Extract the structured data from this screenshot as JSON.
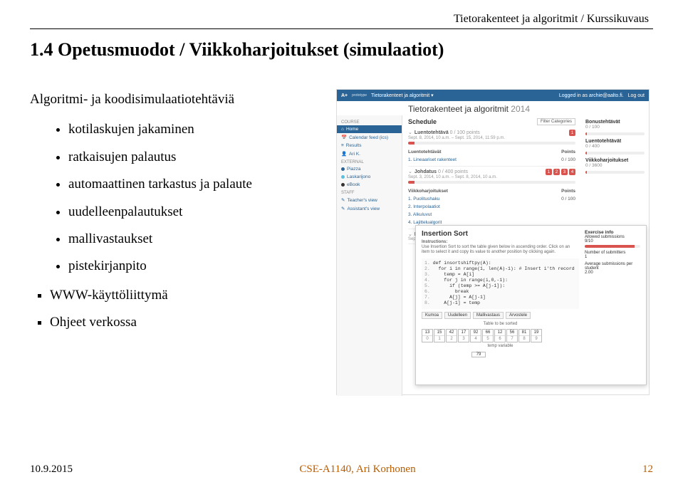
{
  "header": {
    "breadcrumb": "Tietorakenteet ja algoritmit / Kurssikuvaus"
  },
  "title": "1.4 Opetusmuodot / Viikkoharjoitukset (simulaatiot)",
  "left": {
    "lead": "Algoritmi- ja koodisimulaatiotehtäviä",
    "bullets_l1": [
      "kotilaskujen jakaminen",
      "ratkaisujen palautus",
      "automaattinen tarkastus ja palaute",
      "uudelleenpalautukset",
      "mallivastaukset",
      "pistekirjanpito"
    ],
    "bullets_l0": [
      "WWW-käyttöliittymä",
      "Ohjeet verkossa"
    ]
  },
  "screenshot": {
    "topbar": {
      "brand": "A+",
      "proto": "prototype",
      "course": "Tietorakenteet ja algoritmit ▾",
      "login": "Logged in as archie@aalto.fi.",
      "logout": "Log out"
    },
    "mainTitle": "Tietorakenteet ja algoritmit",
    "year": "2014",
    "sidebar": {
      "sec1": "COURSE",
      "home": "Home",
      "cal": "Calendar feed (ics)",
      "results": "Results",
      "user": "Ari K.",
      "sec2": "EXTERNAL",
      "piazza": "Piazza",
      "lask": "Laskarijono",
      "ebook": "eBook",
      "sec3": "STAFF",
      "tv": "Teacher's view",
      "av": "Assistant's view"
    },
    "schedule": {
      "h": "Schedule",
      "filter": "Filter Categories",
      "b1": {
        "t": "Luentotehtävä",
        "pts": "0 / 100 points",
        "sub": "Sept. 8, 2014, 10 a.m. – Sept. 15, 2014, 11:59 p.m.",
        "badge": "1"
      },
      "t1h": "Luentotehtävät",
      "t1p": "Points",
      "r1": {
        "n": "1. Lineaariset rakenteet",
        "p": "0 / 100"
      },
      "b2": {
        "t": "Johdatus",
        "pts": "0 / 400 points",
        "sub": "Sept. 3, 2014, 10 a.m. – Sept. 8, 2014, 10 a.m.",
        "badges": [
          "1",
          "2",
          "3",
          "4"
        ]
      },
      "t2h": "Viikkoharjoitukset",
      "t2p": "Points",
      "r2a": {
        "n": "1. Puolitushaku",
        "p": "0 / 100"
      },
      "r2b": {
        "n": "2. Interpolaatiot"
      },
      "r2c": {
        "n": "3. Alkuluvut"
      },
      "r2d": {
        "n": "4. Lajittelualgorit"
      },
      "b3": {
        "t": "Luentote",
        "sub": "Sept. 22, 2014, 10 a"
      }
    },
    "rpanel": {
      "h1": "Bonustehtävät",
      "v1": "0 / 100",
      "h2": "Luentotehtävät",
      "v2": "0 / 400",
      "h3": "Viikkoharjoitukset",
      "v3": "0 / 3600"
    },
    "inset": {
      "title": "Insertion Sort",
      "instr1": "Instructions:",
      "instr2": "Use Insertion Sort to sort the table given below in ascending order. Click on an item to select it and copy its value to another position by clicking again.",
      "code": {
        "l1": "def insortshiftpy(A):",
        "l2": "  for i in range(1, len(A)-1): # Insert i'th record",
        "l3": "    temp = A[i]",
        "l4": "    for j in range(i,0,-1):",
        "l5": "      if (temp >= A[j-1]):",
        "l6": "        break",
        "l7": "      A[j] = A[j-1]",
        "l8": "    A[j-1] = temp"
      },
      "buttons": [
        "Kumoa",
        "Uudelleen",
        "Mallivastaus",
        "Arvostele"
      ],
      "sortLabel": "Table to be sorted",
      "values": [
        13,
        15,
        42,
        17,
        92,
        66,
        12,
        56,
        81,
        19
      ],
      "indices": [
        0,
        1,
        2,
        3,
        4,
        5,
        6,
        7,
        8,
        9
      ],
      "tempLabel": "temp variable",
      "tempVal": 79,
      "right": {
        "h1": "Exercise info",
        "l1": "Allowed submissions",
        "v1": "9/10",
        "l2": "Number of submitters",
        "v2": "1",
        "l3": "Average submissions per student",
        "v3": "2.00"
      }
    }
  },
  "footer": {
    "date": "10.9.2015",
    "mid": "CSE-A1140, Ari Korhonen",
    "page": "12"
  },
  "colors": {
    "accent": "#2a6496",
    "danger": "#d9534f",
    "footerLink": "#b85c00",
    "piazza": "#2a6496",
    "lask": "#5bc0de",
    "ebook": "#333"
  }
}
